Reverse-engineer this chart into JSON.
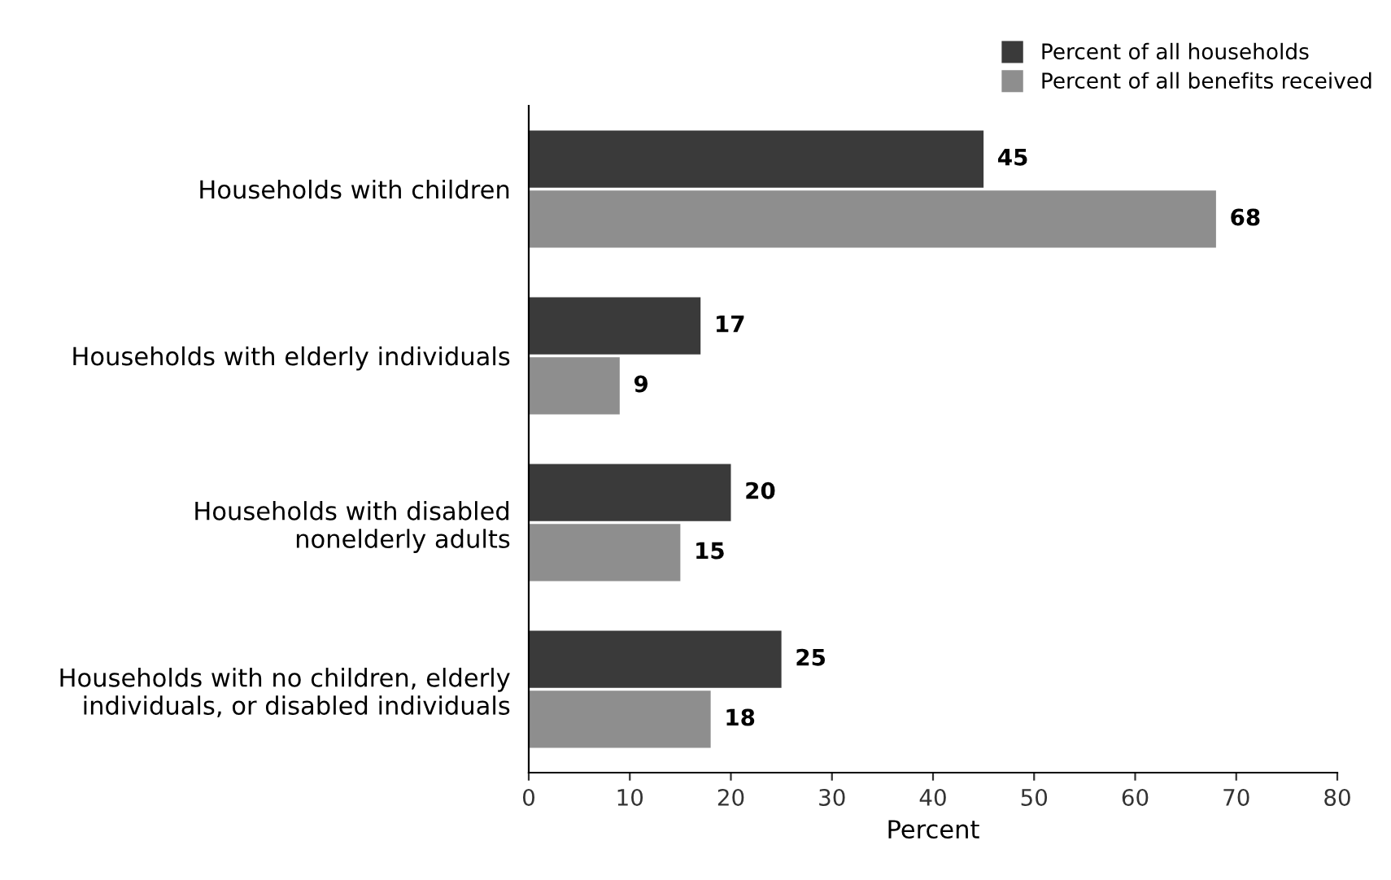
{
  "chart_data": {
    "type": "bar",
    "orientation": "horizontal",
    "xlabel": "Percent",
    "categories": [
      "Households with children",
      "Households with elderly individuals",
      "Households with disabled\nnonelderly adults",
      "Households with no children, elderly\nindividuals, or disabled individuals"
    ],
    "series": [
      {
        "name": "Percent of all households",
        "color": "#3a3a3a",
        "values": [
          45,
          17,
          20,
          25
        ]
      },
      {
        "name": "Percent of all benefits received",
        "color": "#8e8e8e",
        "values": [
          68,
          9,
          15,
          18
        ]
      }
    ],
    "xlim": [
      0,
      80
    ],
    "xticks": [
      0,
      10,
      20,
      30,
      40,
      50,
      60,
      70,
      80
    ],
    "data_labels": true,
    "grid": false,
    "legend": "top right"
  }
}
